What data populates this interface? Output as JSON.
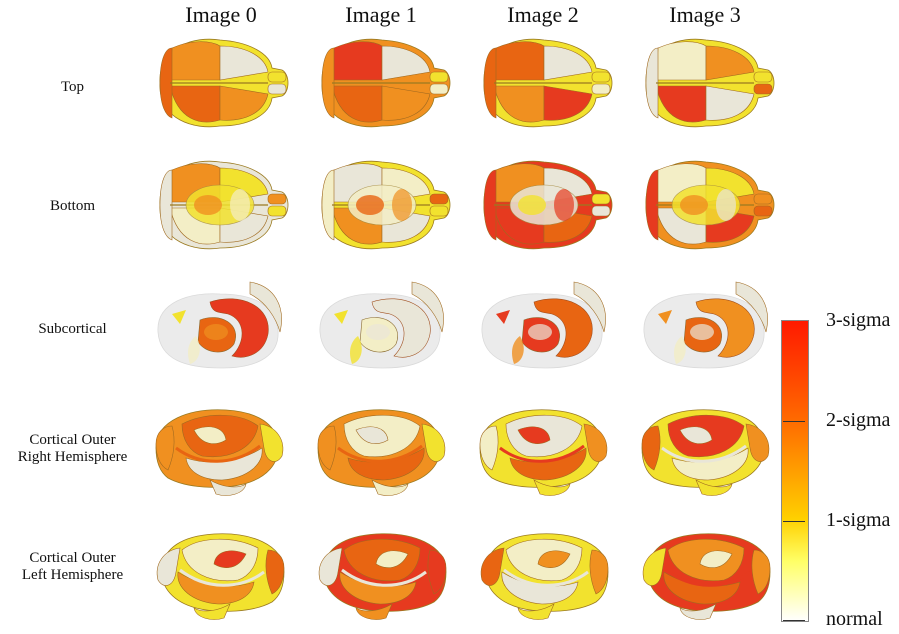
{
  "columns": [
    "Image 0",
    "Image 1",
    "Image 2",
    "Image 3"
  ],
  "rows": [
    "Top",
    "Bottom",
    "Subcortical",
    "Cortical Outer\nRight Hemisphere",
    "Cortical Outer\nLeft Hemisphere"
  ],
  "colorbar": {
    "labels": [
      "3-sigma",
      "2-sigma",
      "1-sigma",
      "normal"
    ],
    "colors": [
      "#ff1a00",
      "#ff6a00",
      "#ffd000",
      "#ffff66",
      "#ffffff"
    ]
  },
  "palette": {
    "white": "#e9e6d8",
    "pale": "#f3eec6",
    "yellow": "#f2e22e",
    "orange": "#f09020",
    "deep": "#e86512",
    "red": "#e63a1f"
  },
  "regions": [
    [
      [
        "yellow",
        "orange",
        "white",
        "deep",
        "orange",
        "yellow",
        "white",
        "deep"
      ],
      [
        "white",
        "orange",
        "yellow",
        "pale",
        "white",
        "orange",
        "yellow",
        "white"
      ],
      [
        "white",
        "red",
        "deep",
        "pale",
        "orange",
        "white",
        "yellow",
        "white"
      ],
      [
        "orange",
        "deep",
        "pale",
        "white",
        "yellow",
        "orange",
        "white",
        "deep"
      ],
      [
        "yellow",
        "pale",
        "red",
        "orange",
        "white",
        "deep",
        "yellow",
        "white"
      ]
    ],
    [
      [
        "orange",
        "red",
        "white",
        "deep",
        "orange",
        "yellow",
        "pale",
        "orange"
      ],
      [
        "yellow",
        "white",
        "pale",
        "orange",
        "white",
        "deep",
        "yellow",
        "pale"
      ],
      [
        "white",
        "white",
        "pale",
        "yellow",
        "white",
        "pale",
        "yellow",
        "white"
      ],
      [
        "orange",
        "pale",
        "white",
        "deep",
        "yellow",
        "orange",
        "pale",
        "deep"
      ],
      [
        "red",
        "deep",
        "pale",
        "orange",
        "white",
        "red",
        "orange",
        "white"
      ]
    ],
    [
      [
        "yellow",
        "deep",
        "white",
        "orange",
        "red",
        "yellow",
        "pale",
        "deep"
      ],
      [
        "red",
        "orange",
        "white",
        "red",
        "deep",
        "yellow",
        "white",
        "red"
      ],
      [
        "white",
        "deep",
        "red",
        "orange",
        "white",
        "pale",
        "red",
        "white"
      ],
      [
        "yellow",
        "white",
        "red",
        "deep",
        "orange",
        "pale",
        "yellow",
        "red"
      ],
      [
        "yellow",
        "pale",
        "orange",
        "white",
        "deep",
        "orange",
        "yellow",
        "white"
      ]
    ],
    [
      [
        "yellow",
        "pale",
        "orange",
        "red",
        "white",
        "yellow",
        "deep",
        "white"
      ],
      [
        "orange",
        "pale",
        "yellow",
        "white",
        "red",
        "orange",
        "deep",
        "red"
      ],
      [
        "white",
        "orange",
        "deep",
        "pale",
        "white",
        "yellow",
        "orange",
        "white"
      ],
      [
        "yellow",
        "red",
        "white",
        "pale",
        "orange",
        "deep",
        "yellow",
        "white"
      ],
      [
        "red",
        "orange",
        "pale",
        "deep",
        "yellow",
        "orange",
        "white",
        "red"
      ]
    ]
  ]
}
